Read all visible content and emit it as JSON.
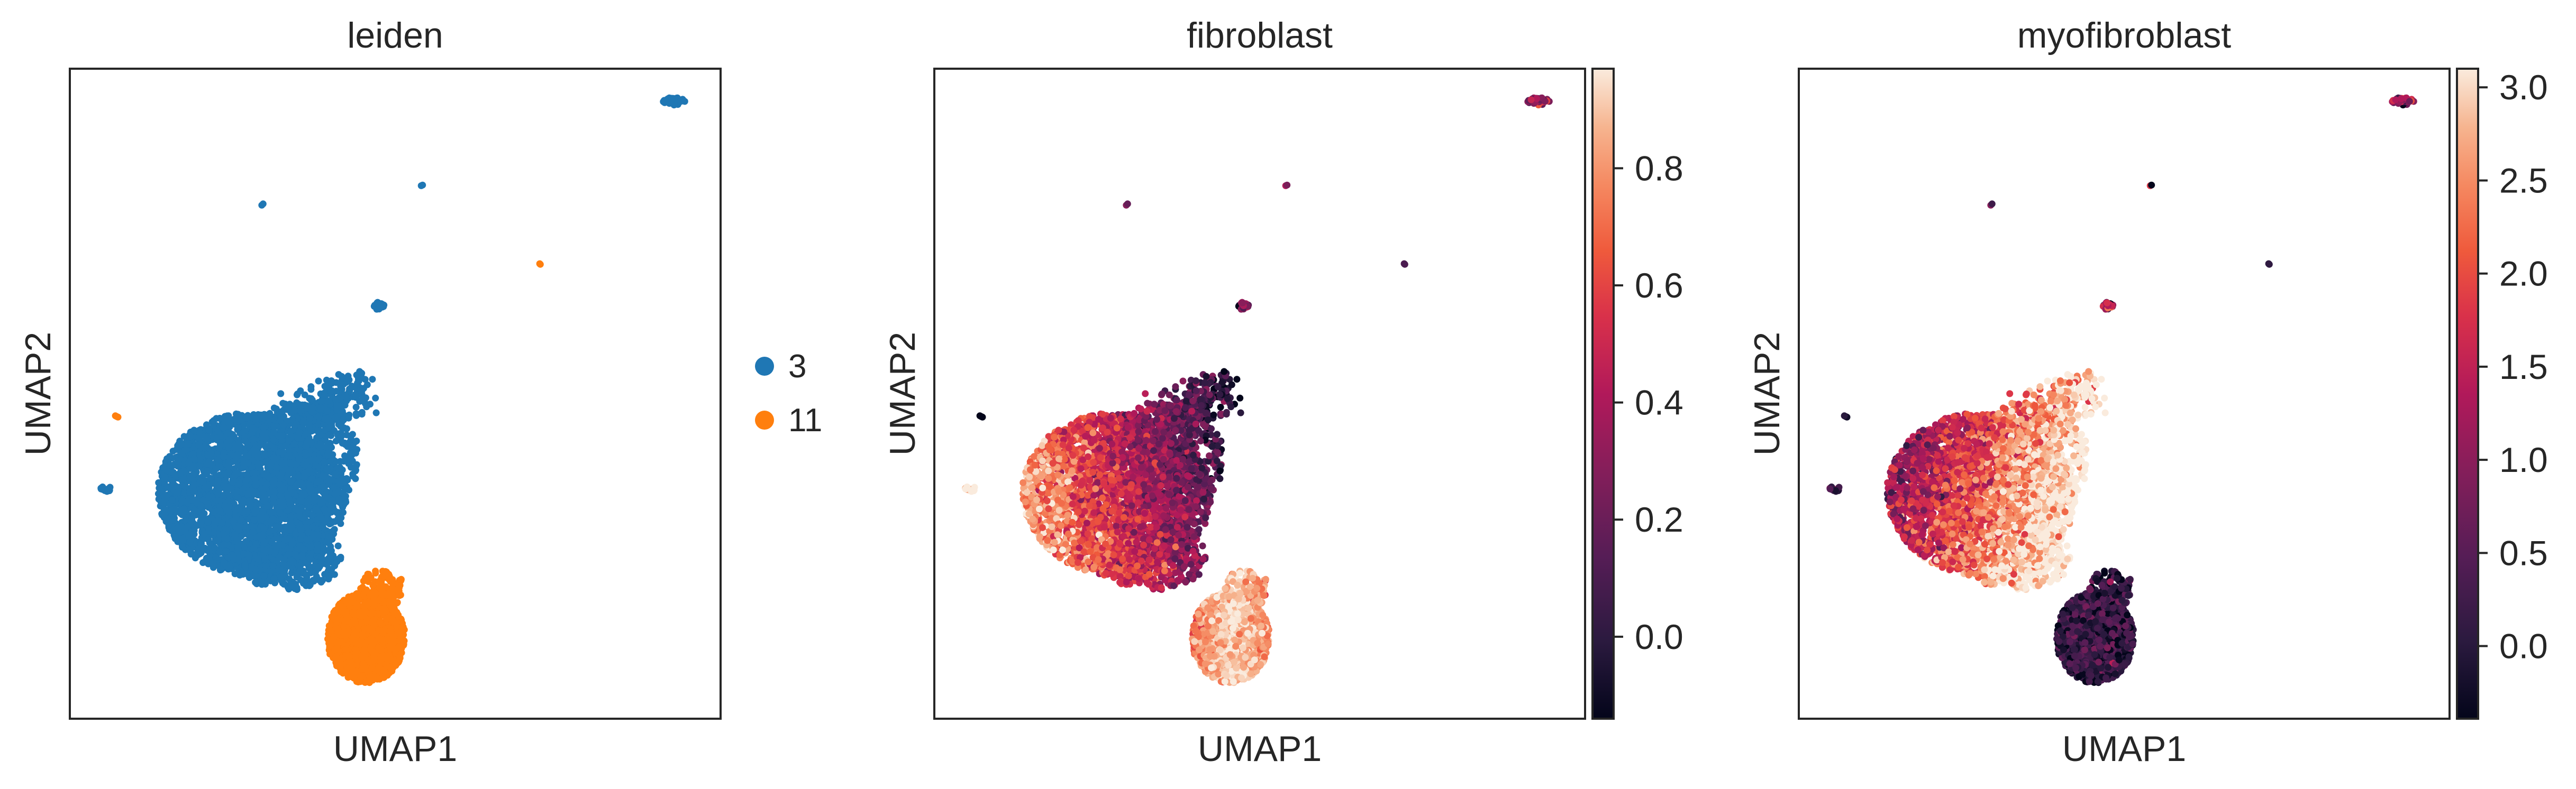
{
  "figure": {
    "panels": [
      {
        "title": "leiden",
        "xlabel": "UMAP1",
        "ylabel": "UMAP2"
      },
      {
        "title": "fibroblast",
        "xlabel": "UMAP1",
        "ylabel": "UMAP2"
      },
      {
        "title": "myofibroblast",
        "xlabel": "UMAP1",
        "ylabel": "UMAP2"
      }
    ]
  },
  "chart_data": [
    {
      "type": "scatter",
      "title": "leiden",
      "xlabel": "UMAP1",
      "ylabel": "UMAP2",
      "axes_ticks": "none",
      "legend": {
        "placement": "right",
        "entries": [
          {
            "label": "3",
            "color": "#1f77b4"
          },
          {
            "label": "11",
            "color": "#ff7f0e"
          }
        ]
      },
      "clusters": [
        {
          "name": "3",
          "color": "#1f77b4",
          "shape": "large blob centre-left with ragged upper-right fringe, plus small outlying groups"
        },
        {
          "name": "11",
          "color": "#ff7f0e",
          "shape": "compact blob bottom-centre, plus two small outliers"
        }
      ]
    },
    {
      "type": "scatter",
      "title": "fibroblast",
      "xlabel": "UMAP1",
      "ylabel": "UMAP2",
      "axes_ticks": "none",
      "colormap": "rocket",
      "colorbar": {
        "range": [
          -0.14,
          0.97
        ],
        "ticks": [
          0.0,
          0.2,
          0.4,
          0.6,
          0.8
        ],
        "tick_labels": [
          "0.0",
          "0.2",
          "0.4",
          "0.6",
          "0.8"
        ]
      },
      "pattern": "high on left part of large blob and on bottom blob; low on upper-right fringe of large blob"
    },
    {
      "type": "scatter",
      "title": "myofibroblast",
      "xlabel": "UMAP1",
      "ylabel": "UMAP2",
      "axes_ticks": "none",
      "colormap": "rocket",
      "colorbar": {
        "range": [
          -0.39,
          3.1
        ],
        "ticks": [
          0.0,
          0.5,
          1.0,
          1.5,
          2.0,
          2.5,
          3.0
        ],
        "tick_labels": [
          "0.0",
          "0.5",
          "1.0",
          "1.5",
          "2.0",
          "2.5",
          "3.0"
        ]
      },
      "pattern": "high on centre and lower-right of large blob; low on bottom blob"
    }
  ]
}
